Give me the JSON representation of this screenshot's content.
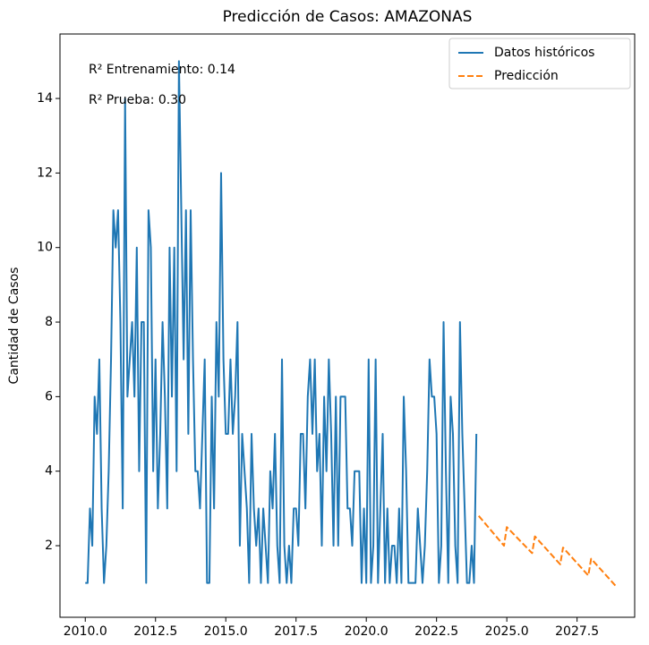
{
  "chart_data": {
    "type": "line",
    "title": "Predicción de Casos: AMAZONAS",
    "y_label": "Cantidad de Casos",
    "annotations": [
      "R² Entrenamiento: 0.14",
      "R² Prueba: 0.30"
    ],
    "xlim": [
      2009.1,
      2029.55
    ],
    "ylim": [
      0.08,
      15.73
    ],
    "xticks": [
      {
        "value": 2010,
        "label": "2010.0"
      },
      {
        "value": 2012.5,
        "label": "2012.5"
      },
      {
        "value": 2015,
        "label": "2015.0"
      },
      {
        "value": 2017.5,
        "label": "2017.5"
      },
      {
        "value": 2020,
        "label": "2020.0"
      },
      {
        "value": 2022.5,
        "label": "2022.5"
      },
      {
        "value": 2025,
        "label": "2025.0"
      },
      {
        "value": 2027.5,
        "label": "2027.5"
      }
    ],
    "yticks": [
      2,
      4,
      6,
      8,
      10,
      12,
      14
    ],
    "grid": false,
    "legend": "upper right",
    "series": [
      {
        "name": "Datos históricos",
        "color": "#1f77b4",
        "linestyle": "solid",
        "x": [
          2010,
          2010.083,
          2010.167,
          2010.25,
          2010.333,
          2010.417,
          2010.5,
          2010.583,
          2010.667,
          2010.75,
          2010.833,
          2010.917,
          2011,
          2011.083,
          2011.167,
          2011.25,
          2011.333,
          2011.417,
          2011.5,
          2011.583,
          2011.667,
          2011.75,
          2011.833,
          2011.917,
          2012,
          2012.083,
          2012.167,
          2012.25,
          2012.333,
          2012.417,
          2012.5,
          2012.583,
          2012.667,
          2012.75,
          2012.833,
          2012.917,
          2013,
          2013.083,
          2013.167,
          2013.25,
          2013.333,
          2013.417,
          2013.5,
          2013.583,
          2013.667,
          2013.75,
          2013.833,
          2013.917,
          2014,
          2014.083,
          2014.167,
          2014.25,
          2014.333,
          2014.417,
          2014.5,
          2014.583,
          2014.667,
          2014.75,
          2014.833,
          2014.917,
          2015,
          2015.083,
          2015.167,
          2015.25,
          2015.333,
          2015.417,
          2015.5,
          2015.583,
          2015.667,
          2015.75,
          2015.833,
          2015.917,
          2016,
          2016.083,
          2016.167,
          2016.25,
          2016.333,
          2016.417,
          2016.5,
          2016.583,
          2016.667,
          2016.75,
          2016.833,
          2016.917,
          2017,
          2017.083,
          2017.167,
          2017.25,
          2017.333,
          2017.417,
          2017.5,
          2017.583,
          2017.667,
          2017.75,
          2017.833,
          2017.917,
          2018,
          2018.083,
          2018.167,
          2018.25,
          2018.333,
          2018.417,
          2018.5,
          2018.583,
          2018.667,
          2018.75,
          2018.833,
          2018.917,
          2019,
          2019.083,
          2019.167,
          2019.25,
          2019.333,
          2019.417,
          2019.5,
          2019.583,
          2019.667,
          2019.75,
          2019.833,
          2019.917,
          2020,
          2020.083,
          2020.167,
          2020.25,
          2020.333,
          2020.417,
          2020.5,
          2020.583,
          2020.667,
          2020.75,
          2020.833,
          2020.917,
          2021,
          2021.083,
          2021.167,
          2021.25,
          2021.333,
          2021.417,
          2021.5,
          2021.583,
          2021.667,
          2021.75,
          2021.833,
          2021.917,
          2022,
          2022.083,
          2022.167,
          2022.25,
          2022.333,
          2022.417,
          2022.5,
          2022.583,
          2022.667,
          2022.75,
          2022.833,
          2022.917,
          2023,
          2023.083,
          2023.167,
          2023.25,
          2023.333,
          2023.417,
          2023.5,
          2023.583,
          2023.667,
          2023.75,
          2023.833,
          2023.917
        ],
        "values": [
          1,
          1,
          3,
          2,
          6,
          5,
          7,
          3,
          1,
          2,
          4,
          7,
          11,
          10,
          11,
          8,
          3,
          14,
          6,
          7,
          8,
          6,
          10,
          4,
          8,
          8,
          1,
          11,
          10,
          4,
          7,
          3,
          5,
          8,
          6,
          3,
          10,
          6,
          10,
          4,
          15,
          11,
          7,
          11,
          5,
          11,
          7,
          4,
          4,
          3,
          5,
          7,
          1,
          1,
          6,
          3,
          8,
          6,
          12,
          7,
          5,
          5,
          7,
          5,
          6,
          8,
          2,
          5,
          4,
          3,
          1,
          5,
          3,
          2,
          3,
          1,
          3,
          2,
          1,
          4,
          3,
          5,
          2,
          1,
          7,
          2,
          1,
          2,
          1,
          3,
          3,
          2,
          5,
          5,
          3,
          6,
          7,
          5,
          7,
          4,
          5,
          2,
          6,
          4,
          7,
          5,
          2,
          6,
          2,
          6,
          6,
          6,
          3,
          3,
          2,
          4,
          4,
          4,
          1,
          3,
          1,
          7,
          1,
          2,
          7,
          1,
          3,
          5,
          1,
          3,
          1,
          2,
          2,
          1,
          3,
          1,
          6,
          4,
          1,
          1,
          1,
          1,
          3,
          2,
          1,
          2,
          4,
          7,
          6,
          6,
          5,
          1,
          2,
          8,
          4,
          1,
          6,
          5,
          2,
          1,
          8,
          5,
          3,
          1,
          1,
          2,
          1,
          5
        ]
      },
      {
        "name": "Predicción",
        "color": "#ff7f0e",
        "linestyle": "dashed",
        "x": [
          2024,
          2024.9,
          2025,
          2025.9,
          2026,
          2026.9,
          2027,
          2027.9,
          2028,
          2028.9
        ],
        "values": [
          2.8,
          2.0,
          2.5,
          1.8,
          2.25,
          1.5,
          1.95,
          1.2,
          1.65,
          0.9
        ]
      }
    ]
  }
}
